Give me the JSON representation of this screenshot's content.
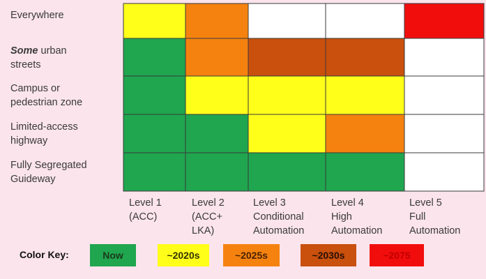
{
  "chart_data": {
    "type": "heatmap",
    "rows": [
      {
        "label_italic": "",
        "label": "Everywhere",
        "cells": [
          "2020s",
          "2025s",
          "none",
          "none",
          "2075"
        ]
      },
      {
        "label_italic": "Some",
        "label": " urban\nstreets",
        "cells": [
          "now",
          "2025s",
          "2030s",
          "2030s",
          "none"
        ]
      },
      {
        "label_italic": "",
        "label": "Campus or\npedestrian zone",
        "cells": [
          "now",
          "2020s",
          "2020s",
          "2020s",
          "none"
        ]
      },
      {
        "label_italic": "",
        "label": "Limited-access\nhighway",
        "cells": [
          "now",
          "now",
          "2020s",
          "2025s",
          "none"
        ]
      },
      {
        "label_italic": "",
        "label": "Fully Segregated\nGuideway",
        "cells": [
          "now",
          "now",
          "now",
          "now",
          "none"
        ]
      }
    ],
    "columns": [
      "Level 1\n(ACC)",
      "Level 2\n(ACC+\nLKA)",
      "Level 3\nConditional\nAutomation",
      "Level 4\nHigh\nAutomation",
      "Level 5\nFull\nAutomation"
    ],
    "colors": {
      "now": "#1fa64f",
      "2020s": "#ffff1a",
      "2025s": "#f5820f",
      "2030s": "#c9500d",
      "2075": "#f20d0d",
      "none": "#ffffff"
    },
    "key": {
      "title": "Color Key:",
      "items": [
        {
          "key": "now",
          "label": "Now",
          "text_color": "#1b3a1b"
        },
        {
          "key": "2020s",
          "label": "~2020s",
          "text_color": "#333300"
        },
        {
          "key": "2025s",
          "label": "~2025s",
          "text_color": "#4a2200"
        },
        {
          "key": "2030s",
          "label": "~2030s",
          "text_color": "#2a0f00"
        },
        {
          "key": "2075",
          "label": "~2075",
          "text_color": "#c00000"
        }
      ]
    }
  }
}
